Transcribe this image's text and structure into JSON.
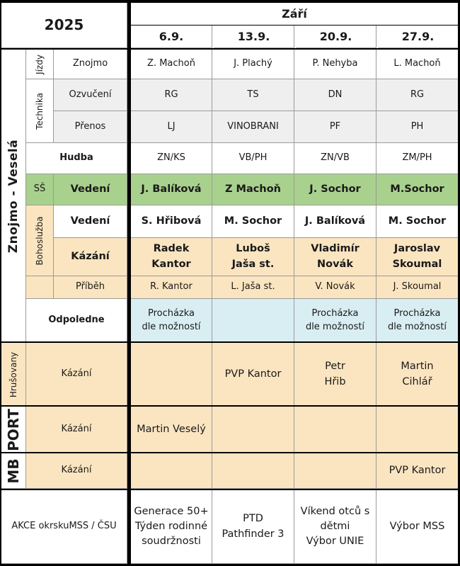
{
  "header": {
    "year": "2025",
    "month": "Září",
    "dates": [
      "6.9.",
      "13.9.",
      "20.9.",
      "27.9."
    ]
  },
  "sections": {
    "main": "Znojmo - Veselá",
    "jizdy": "Jízdy",
    "technika": "Technika",
    "ss": "SŠ",
    "bohosluzba": "Bohoslužba",
    "hrusovany": "Hrušovany",
    "port": "PORT",
    "mb": "MB"
  },
  "rows": {
    "znojmo": {
      "label": "Znojmo",
      "cells": [
        "Z. Machoň",
        "J. Plachý",
        "P. Nehyba",
        "L. Machoň"
      ]
    },
    "ozvuceni": {
      "label": "Ozvučení",
      "cells": [
        "RG",
        "TS",
        "DN",
        "RG"
      ]
    },
    "prenos": {
      "label": "Přenos",
      "cells": [
        "LJ",
        "VINOBRANI",
        "PF",
        "PH"
      ]
    },
    "hudba": {
      "label": "Hudba",
      "cells": [
        "ZN/KS",
        "VB/PH",
        "ZN/VB",
        "ZM/PH"
      ]
    },
    "ss_vedeni": {
      "label": "Vedení",
      "cells": [
        "J. Balíková",
        "Z Machoň",
        "J. Sochor",
        "M.Sochor"
      ]
    },
    "boh_vedeni": {
      "label": "Vedení",
      "cells": [
        "S. Hřibová",
        "M. Sochor",
        "J. Balíková",
        "M. Sochor"
      ]
    },
    "kazani": {
      "label": "Kázání",
      "cells": [
        "Radek Kantor",
        "Luboš\nJaša st.",
        "Vladimír\nNovák",
        "Jaroslav\nSkoumal"
      ]
    },
    "pribeh": {
      "label": "Příběh",
      "cells": [
        "R. Kantor",
        "L. Jaša st.",
        "V. Novák",
        "J. Skoumal"
      ]
    },
    "odpoledne": {
      "label": "Odpoledne",
      "cells": [
        "Procházka\ndle možností",
        "",
        "Procházka\ndle možností",
        "Procházka\ndle možností"
      ]
    },
    "hrusovany_kazani": {
      "label": "Kázání",
      "cells": [
        "",
        "PVP Kantor",
        "Petr\nHřib",
        "Martin\nCihlář"
      ]
    },
    "port_kazani": {
      "label": "Kázání",
      "cells": [
        "Martin Veselý",
        "",
        "",
        ""
      ]
    },
    "mb_kazani": {
      "label": "Kázání",
      "cells": [
        "",
        "",
        "",
        "PVP Kantor"
      ]
    },
    "akce": {
      "label": "AKCE okrskuMSS / ČSU",
      "cells": [
        "Generace 50+\nTýden rodinné\nsoudržnosti",
        "PTD\nPathfinder 3",
        "Víkend otců s\ndětmi\nVýbor UNIE",
        "Výbor MSS"
      ]
    }
  }
}
